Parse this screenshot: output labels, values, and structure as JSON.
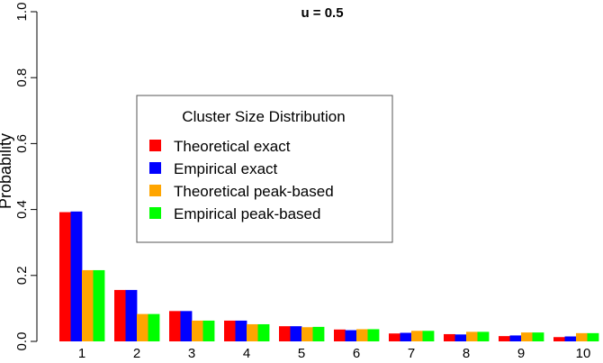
{
  "chart_data": {
    "type": "bar",
    "title": "u = 0.5",
    "xlabel": "",
    "ylabel": "Probability",
    "ylim": [
      0,
      1.0
    ],
    "yticks": [
      "0.0",
      "0.2",
      "0.4",
      "0.6",
      "0.8",
      "1.0"
    ],
    "categories": [
      "1",
      "2",
      "3",
      "4",
      "5",
      "6",
      "7",
      "8",
      "9",
      "10"
    ],
    "legend": {
      "title": "Cluster Size Distribution",
      "position": "center"
    },
    "grid": false,
    "series": [
      {
        "name": "Theoretical exact",
        "color": "#ff0000",
        "values": [
          0.392,
          0.156,
          0.092,
          0.063,
          0.046,
          0.036,
          0.024,
          0.022,
          0.016,
          0.013
        ]
      },
      {
        "name": "Empirical exact",
        "color": "#0000ff",
        "values": [
          0.394,
          0.156,
          0.092,
          0.063,
          0.046,
          0.034,
          0.026,
          0.021,
          0.018,
          0.015
        ]
      },
      {
        "name": "Theoretical peak-based",
        "color": "#ffa500",
        "values": [
          0.216,
          0.083,
          0.063,
          0.052,
          0.043,
          0.037,
          0.032,
          0.029,
          0.027,
          0.025
        ]
      },
      {
        "name": "Empirical peak-based",
        "color": "#00ff00",
        "values": [
          0.216,
          0.083,
          0.063,
          0.052,
          0.044,
          0.037,
          0.032,
          0.029,
          0.027,
          0.025
        ]
      }
    ]
  }
}
